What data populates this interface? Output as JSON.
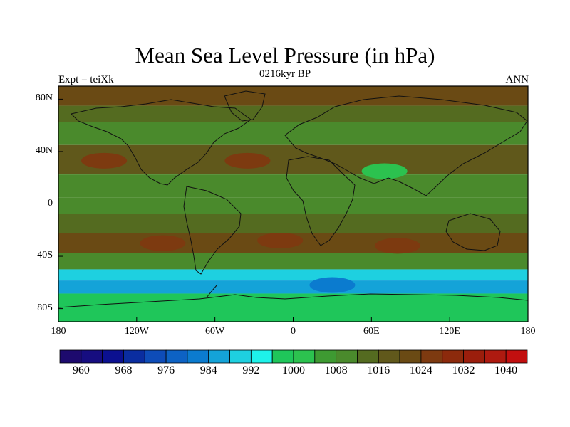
{
  "figure": {
    "title": "Mean Sea Level Pressure (in hPa)",
    "center_string": "0216kyr BP",
    "left_string": "Expt = teiXk",
    "right_string": "ANN"
  },
  "axes": {
    "lat_ticks": [
      {
        "value": 80,
        "label": "80N"
      },
      {
        "value": 40,
        "label": "40N"
      },
      {
        "value": 0,
        "label": "0"
      },
      {
        "value": -40,
        "label": "40S"
      },
      {
        "value": -80,
        "label": "80S"
      }
    ],
    "lon_ticks": [
      {
        "value": -180,
        "label": "180"
      },
      {
        "value": -120,
        "label": "120W"
      },
      {
        "value": -60,
        "label": "60W"
      },
      {
        "value": 0,
        "label": "0"
      },
      {
        "value": 60,
        "label": "60E"
      },
      {
        "value": 120,
        "label": "120E"
      },
      {
        "value": 180,
        "label": "180"
      }
    ]
  },
  "colorbar": {
    "colors": [
      "#1d0a6e",
      "#160d80",
      "#0b1090",
      "#0a2da0",
      "#0e4cb8",
      "#0d62c4",
      "#0b7bcf",
      "#14a3d8",
      "#1ed0e0",
      "#1ef2ea",
      "#1fc65a",
      "#2cc24f",
      "#3e9a32",
      "#4a8a2c",
      "#546b20",
      "#60581b",
      "#6a4a14",
      "#7d3a10",
      "#8c2a0c",
      "#9b1e0c",
      "#ae1a10",
      "#c20f0f"
    ],
    "labels": [
      "960",
      "968",
      "976",
      "984",
      "992",
      "1000",
      "1008",
      "1016",
      "1024",
      "1032",
      "1040"
    ]
  },
  "chart_data": {
    "type": "heatmap",
    "title": "Mean Sea Level Pressure (in hPa)",
    "units": "hPa",
    "projection": "cylindrical equidistant",
    "lon_range": [
      -180,
      180
    ],
    "lat_range": [
      -90,
      90
    ],
    "contour_levels": [
      960,
      964,
      968,
      972,
      976,
      980,
      984,
      988,
      992,
      996,
      1000,
      1004,
      1008,
      1012,
      1016,
      1020,
      1024,
      1028,
      1032,
      1036,
      1040
    ],
    "zonal_band_pressure": [
      {
        "lat": 80,
        "value": 1022
      },
      {
        "lat": 70,
        "value": 1012
      },
      {
        "lat": 55,
        "value": 1010
      },
      {
        "lat": 35,
        "value": 1018
      },
      {
        "lat": 10,
        "value": 1010
      },
      {
        "lat": 0,
        "value": 1008
      },
      {
        "lat": -15,
        "value": 1014
      },
      {
        "lat": -30,
        "value": 1020
      },
      {
        "lat": -45,
        "value": 1010
      },
      {
        "lat": -55,
        "value": 990
      },
      {
        "lat": -62,
        "value": 984
      },
      {
        "lat": -75,
        "value": 996
      }
    ],
    "features": [
      {
        "name": "subtropical high north pacific",
        "lon": -145,
        "lat": 33,
        "value": 1024
      },
      {
        "name": "subtropical high north atlantic",
        "lon": -35,
        "lat": 33,
        "value": 1024
      },
      {
        "name": "subtropical high south pacific",
        "lon": -100,
        "lat": -30,
        "value": 1024
      },
      {
        "name": "subtropical high south atlantic",
        "lon": -10,
        "lat": -28,
        "value": 1024
      },
      {
        "name": "subtropical high indian ocean",
        "lon": 80,
        "lat": -32,
        "value": 1024
      },
      {
        "name": "asian low",
        "lon": 70,
        "lat": 25,
        "value": 1000
      },
      {
        "name": "southern ocean low",
        "lon": 30,
        "lat": -62,
        "value": 980
      }
    ]
  }
}
